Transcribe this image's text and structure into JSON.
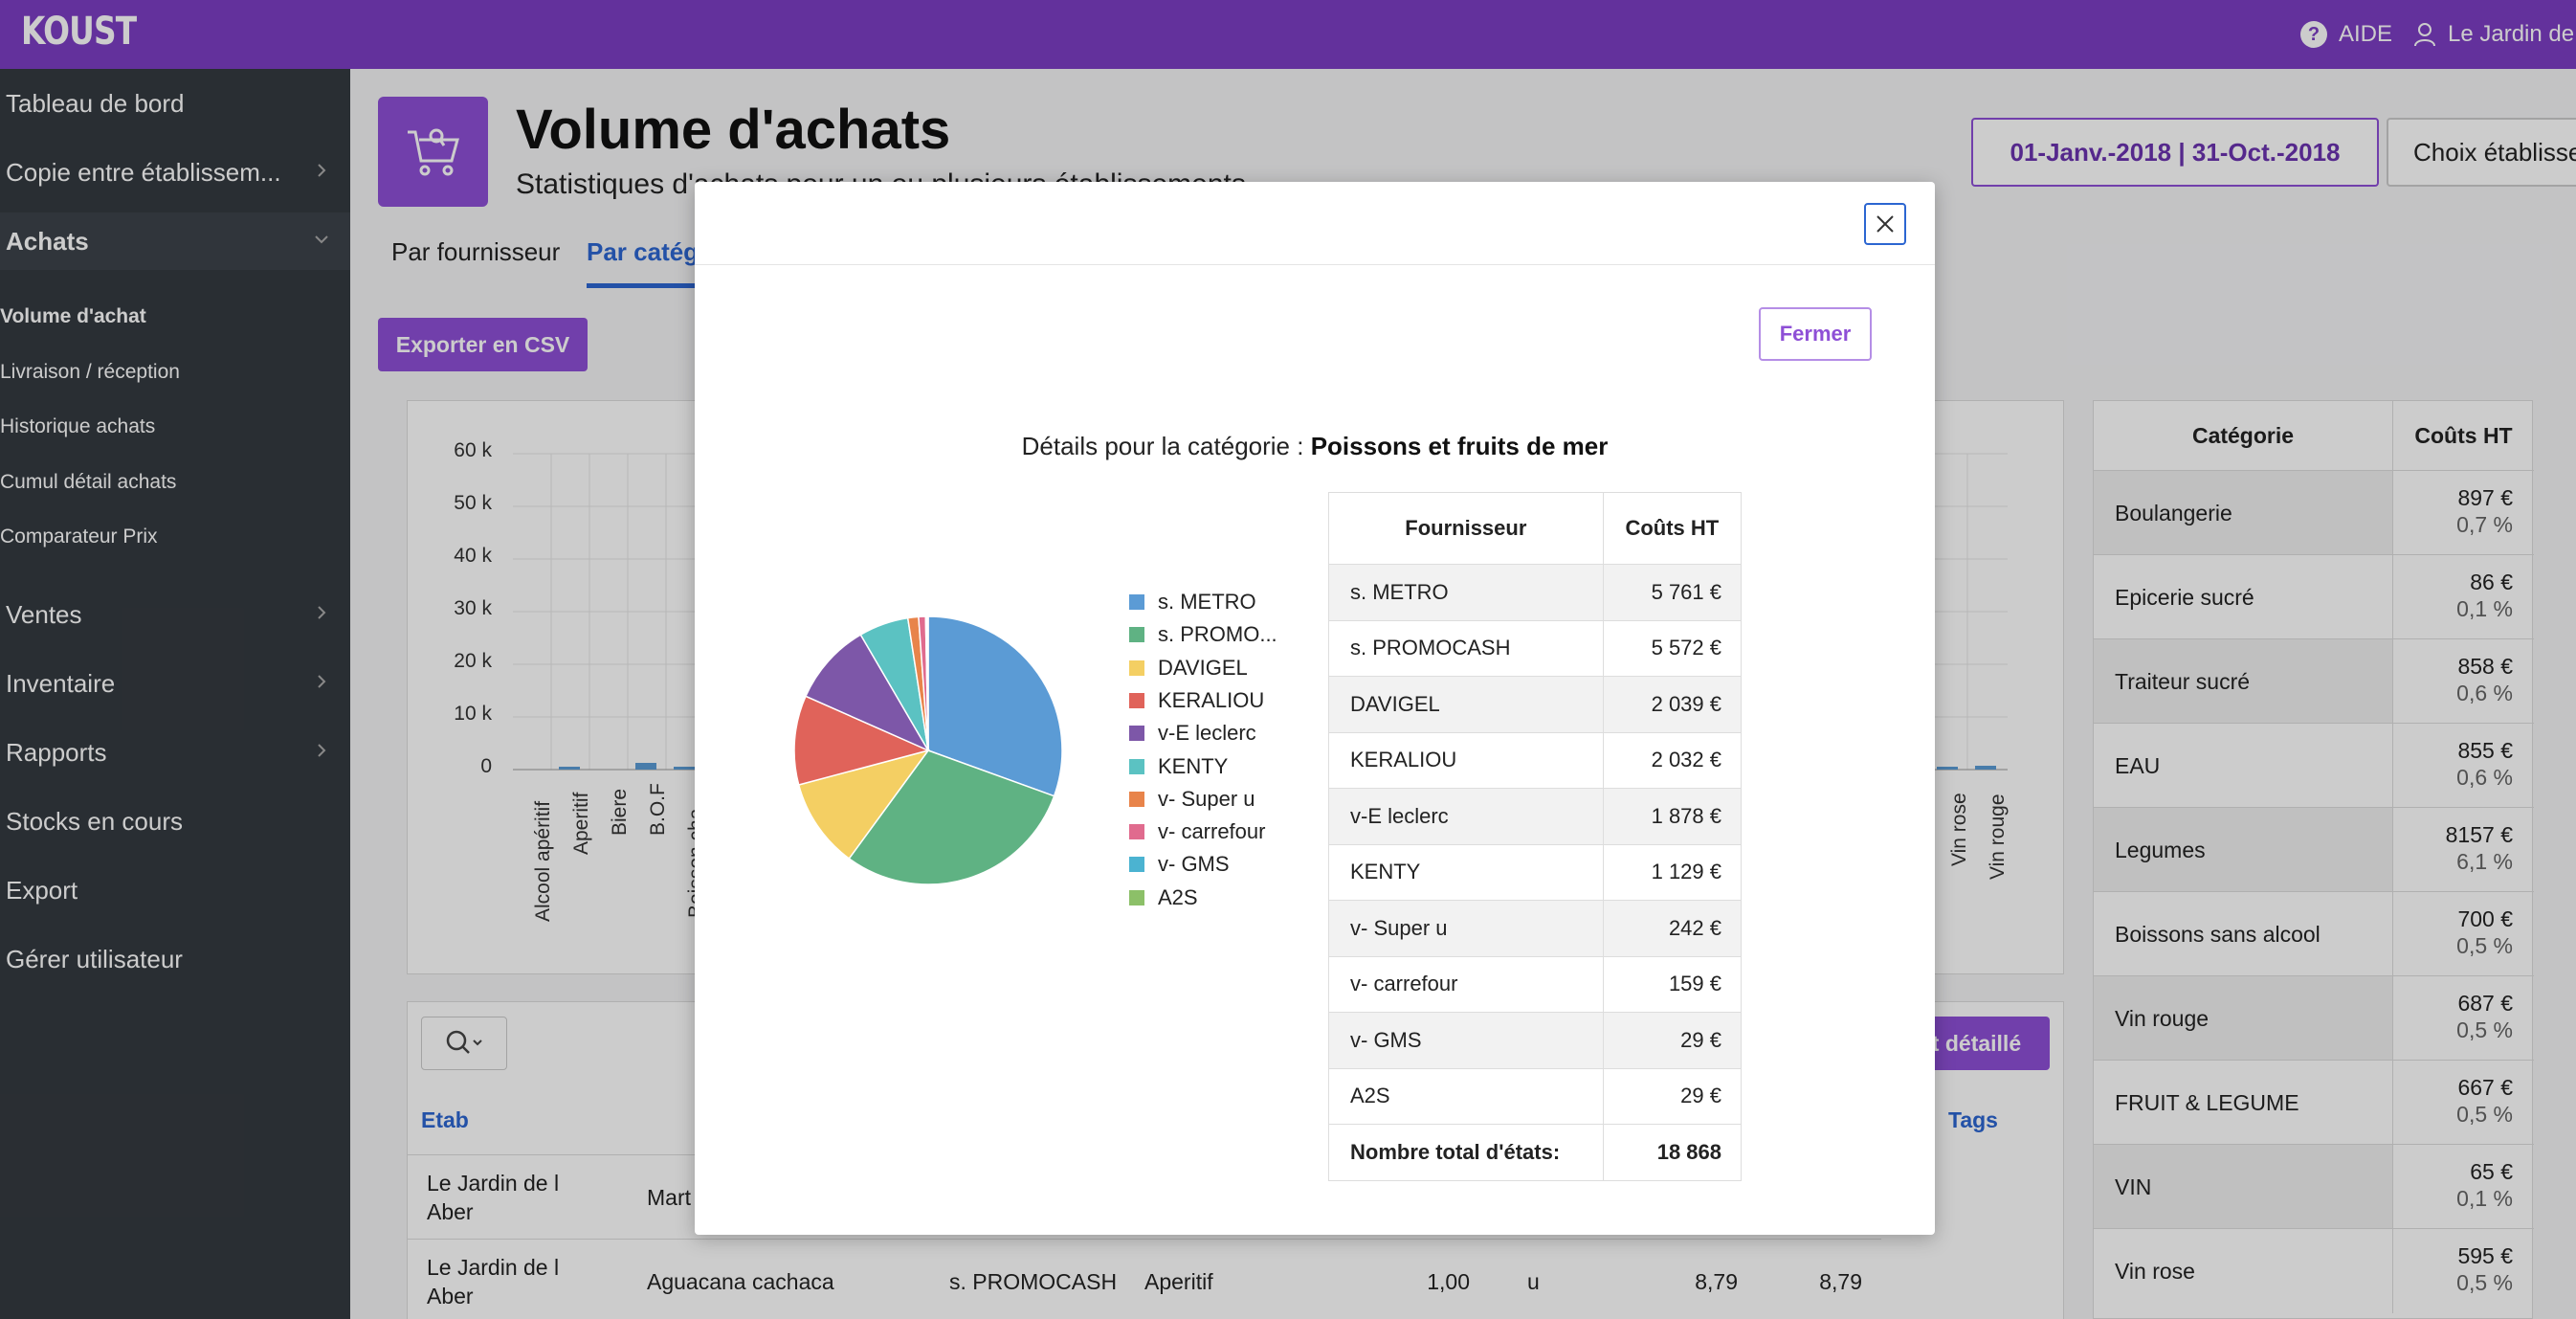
{
  "app": {
    "logo": "KOUST",
    "help": "AIDE",
    "user": "Le Jardin de"
  },
  "sidebar": {
    "items": [
      {
        "label": "Tableau de bord"
      },
      {
        "label": "Copie entre établissem..."
      },
      {
        "label": "Achats"
      },
      {
        "label": "Ventes"
      },
      {
        "label": "Inventaire"
      },
      {
        "label": "Rapports"
      },
      {
        "label": "Stocks en cours"
      },
      {
        "label": "Export"
      },
      {
        "label": "Gérer utilisateur"
      }
    ],
    "achats_sub": [
      {
        "label": "Volume d'achat"
      },
      {
        "label": "Livraison / réception"
      },
      {
        "label": "Historique achats"
      },
      {
        "label": "Cumul détail achats"
      },
      {
        "label": "Comparateur Prix"
      }
    ]
  },
  "header": {
    "title": "Volume d'achats",
    "subtitle": "Statistiques d'achats pour un ou plusieurs établissements",
    "date_range": "01-Janv.-2018 | 31-Oct.-2018",
    "etab_button": "Choix établisse"
  },
  "tabs": [
    {
      "label": "Par fournisseur"
    },
    {
      "label": "Par catég"
    }
  ],
  "export_button": "Exporter en CSV",
  "bg_chart": {
    "yticks": [
      "60 k",
      "50 k",
      "40 k",
      "30 k",
      "20 k",
      "10 k",
      "0"
    ],
    "xlabels_left": [
      "Alcool apéritif",
      "Aperitif",
      "Biere",
      "B.O.F",
      "Boisson cha..."
    ],
    "xlabels_right": [
      "Vin rose",
      "Vin rouge"
    ]
  },
  "right_table": {
    "headers": [
      "Catégorie",
      "Coûts HT"
    ],
    "rows": [
      {
        "cat": "Boulangerie",
        "val": "897 €",
        "pct": "0,7 %"
      },
      {
        "cat": "Epicerie sucré",
        "val": "86 €",
        "pct": "0,1 %"
      },
      {
        "cat": "Traiteur sucré",
        "val": "858 €",
        "pct": "0,6 %"
      },
      {
        "cat": "EAU",
        "val": "855 €",
        "pct": "0,6 %"
      },
      {
        "cat": "Legumes",
        "val": "8157 €",
        "pct": "6,1 %"
      },
      {
        "cat": "Boissons sans alcool",
        "val": "700 €",
        "pct": "0,5 %"
      },
      {
        "cat": "Vin rouge",
        "val": "687 €",
        "pct": "0,5 %"
      },
      {
        "cat": "FRUIT & LEGUME",
        "val": "667 €",
        "pct": "0,5 %"
      },
      {
        "cat": "VIN",
        "val": "65 €",
        "pct": "0,1 %"
      },
      {
        "cat": "Vin rose",
        "val": "595 €",
        "pct": "0,5 %"
      }
    ]
  },
  "bottom_table": {
    "detail_button": "rt détaillé",
    "headers": {
      "etab": "Etab",
      "tags": "Tags"
    },
    "rows": [
      {
        "etab": "Le Jardin de l Aber",
        "produit": "Mart",
        "fournisseur": "",
        "categorie": "",
        "qte": "",
        "unite": "",
        "pu": "",
        "total": ""
      },
      {
        "etab": "Le Jardin de l Aber",
        "produit": "Aguacana cachaca",
        "fournisseur": "s. PROMOCASH",
        "categorie": "Aperitif",
        "qte": "1,00",
        "unite": "u",
        "pu": "8,79",
        "total": "8,79"
      }
    ]
  },
  "modal": {
    "close_button": "Fermer",
    "heading_prefix": "Détails pour la catégorie :",
    "heading_category": "Poissons et fruits de mer",
    "table_headers": [
      "Fournisseur",
      "Coûts HT"
    ],
    "total_label": "Nombre total d'états:",
    "total_value": "18 868"
  },
  "chart_data": {
    "type": "pie",
    "title": "",
    "categories": [
      "s. METRO",
      "s. PROMOCASH",
      "DAVIGEL",
      "KERALIOU",
      "v-E leclerc",
      "KENTY",
      "v- Super u",
      "v- carrefour",
      "v- GMS",
      "A2S"
    ],
    "legend_labels": [
      "s. METRO",
      "s. PROMO...",
      "DAVIGEL",
      "KERALIOU",
      "v-E leclerc",
      "KENTY",
      "v- Super u",
      "v- carrefour",
      "v- GMS",
      "A2S"
    ],
    "values": [
      5761,
      5572,
      2039,
      2032,
      1878,
      1129,
      242,
      159,
      29,
      29
    ],
    "value_labels": [
      "5 761 €",
      "5 572 €",
      "2 039 €",
      "2 032 €",
      "1 878 €",
      "1 129 €",
      "242 €",
      "159 €",
      "29 €",
      "29 €"
    ],
    "colors": [
      "#5b9bd5",
      "#5fb283",
      "#f4cf63",
      "#e0635a",
      "#7d57a8",
      "#5bc2c2",
      "#e8844a",
      "#e06b8e",
      "#4bb3d1",
      "#8cc068"
    ],
    "legend_position": "right"
  }
}
